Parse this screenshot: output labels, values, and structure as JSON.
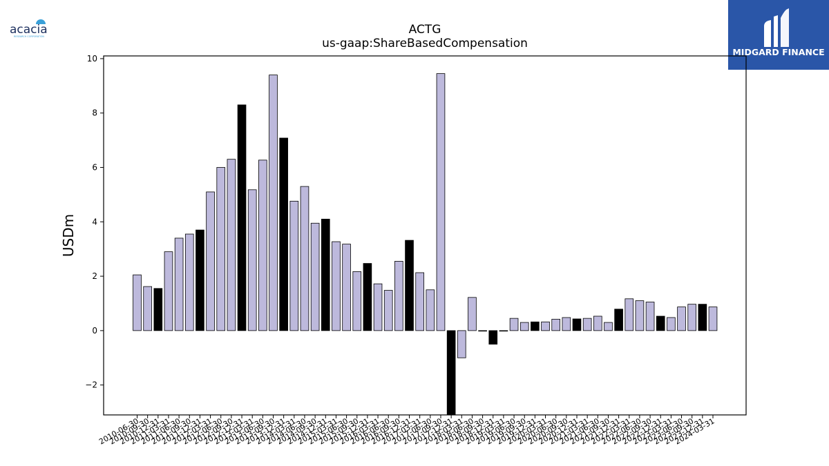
{
  "company_logo": {
    "text": "acacia",
    "subtext": "RESEARCH CORPORATION",
    "dot_color": "#3aa0d8",
    "text_color": "#1c2f5e"
  },
  "brand_badge": {
    "text": "MIDGARD FINANCE",
    "bg_color": "#2a56a8",
    "icon": "midgard-m-icon"
  },
  "chart_data": {
    "type": "bar",
    "title": "ACTG",
    "subtitle": "us-gaap:ShareBasedCompensation",
    "xlabel": "",
    "ylabel": "USDm",
    "ylim": [
      -3.1,
      10.1
    ],
    "yticks": [
      -2,
      0,
      2,
      4,
      6,
      8,
      10
    ],
    "grid": false,
    "bar_color": "#bdb9dc",
    "highlight_color": "#000000",
    "categories": [
      "2010-06-30",
      "2010-09-30",
      "2010-12-31",
      "2011-03-31",
      "2011-06-30",
      "2011-09-30",
      "2011-12-31",
      "2012-03-31",
      "2012-06-30",
      "2012-09-30",
      "2012-12-31",
      "2013-03-31",
      "2013-06-30",
      "2013-09-30",
      "2013-12-31",
      "2014-03-31",
      "2014-06-30",
      "2014-09-30",
      "2014-12-31",
      "2015-03-31",
      "2015-06-30",
      "2015-09-30",
      "2015-12-31",
      "2016-03-31",
      "2016-06-30",
      "2016-09-30",
      "2016-12-31",
      "2017-03-31",
      "2017-06-30",
      "2017-09-30",
      "2017-12-31",
      "2018-03-31",
      "2018-06-30",
      "2018-09-30",
      "2018-12-31",
      "2019-03-31",
      "2019-06-30",
      "2019-09-30",
      "2019-12-31",
      "2020-03-31",
      "2020-06-30",
      "2020-09-30",
      "2020-12-31",
      "2021-03-31",
      "2021-06-30",
      "2021-09-30",
      "2021-12-31",
      "2022-03-31",
      "2022-06-30",
      "2022-09-30",
      "2022-12-31",
      "2023-03-31",
      "2023-06-30",
      "2023-09-30",
      "2023-12-31",
      "2024-03-31"
    ],
    "values": [
      2.05,
      1.62,
      1.55,
      2.9,
      3.4,
      3.55,
      3.7,
      5.1,
      6.0,
      6.3,
      8.3,
      5.18,
      6.27,
      9.4,
      7.08,
      4.76,
      5.3,
      3.95,
      4.1,
      3.27,
      3.18,
      2.17,
      2.47,
      1.72,
      1.48,
      2.55,
      3.32,
      2.13,
      1.5,
      9.45,
      -3.4,
      -1.0,
      1.22,
      -0.02,
      -0.5,
      -0.02,
      0.45,
      0.3,
      0.32,
      0.32,
      0.42,
      0.48,
      0.43,
      0.45,
      0.53,
      0.3,
      0.79,
      1.17,
      1.1,
      1.05,
      0.53,
      0.48,
      0.87,
      0.97,
      0.97,
      0.87
    ],
    "highlight": [
      false,
      false,
      true,
      false,
      false,
      false,
      true,
      false,
      false,
      false,
      true,
      false,
      false,
      false,
      true,
      false,
      false,
      false,
      true,
      false,
      false,
      false,
      true,
      false,
      false,
      false,
      true,
      false,
      false,
      false,
      true,
      false,
      false,
      false,
      true,
      false,
      false,
      false,
      true,
      false,
      false,
      false,
      true,
      false,
      false,
      false,
      true,
      false,
      false,
      false,
      true,
      false,
      false,
      false,
      true,
      false
    ]
  }
}
